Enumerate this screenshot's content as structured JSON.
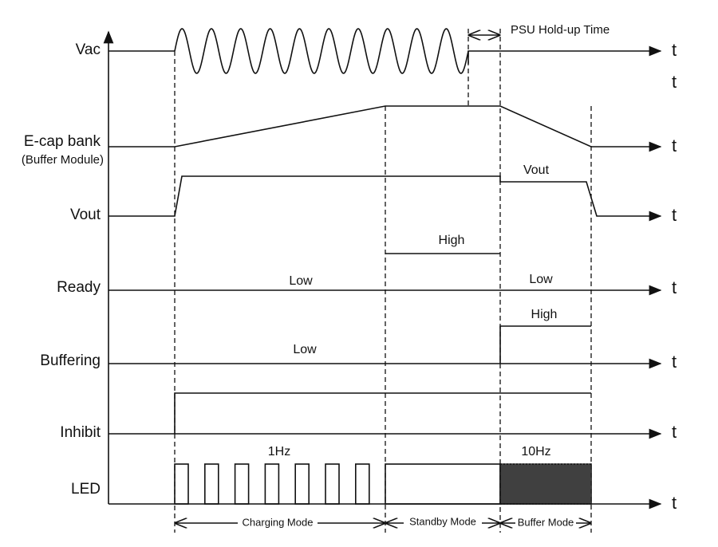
{
  "signals": [
    {
      "name": "Vac",
      "axis": "t"
    },
    {
      "name": "E-cap bank",
      "subname": "(Buffer Module)",
      "axis": "t"
    },
    {
      "name": "Vout",
      "axis": "t"
    },
    {
      "name": "Ready",
      "axis": "t"
    },
    {
      "name": "Buffering",
      "axis": "t"
    },
    {
      "name": "Inhibit",
      "axis": "t"
    },
    {
      "name": "LED",
      "axis": "t"
    }
  ],
  "extra_axis_label": "t",
  "annotations": {
    "hold_up": "PSU Hold-up Time",
    "vout_level": "Vout",
    "ready_high": "High",
    "ready_low_left": "Low",
    "ready_low_right": "Low",
    "buffering_high": "High",
    "buffering_low": "Low",
    "led_charging": "1Hz",
    "led_buffer": "10Hz"
  },
  "modes": [
    "Charging Mode",
    "Standby Mode",
    "Buffer Mode"
  ]
}
